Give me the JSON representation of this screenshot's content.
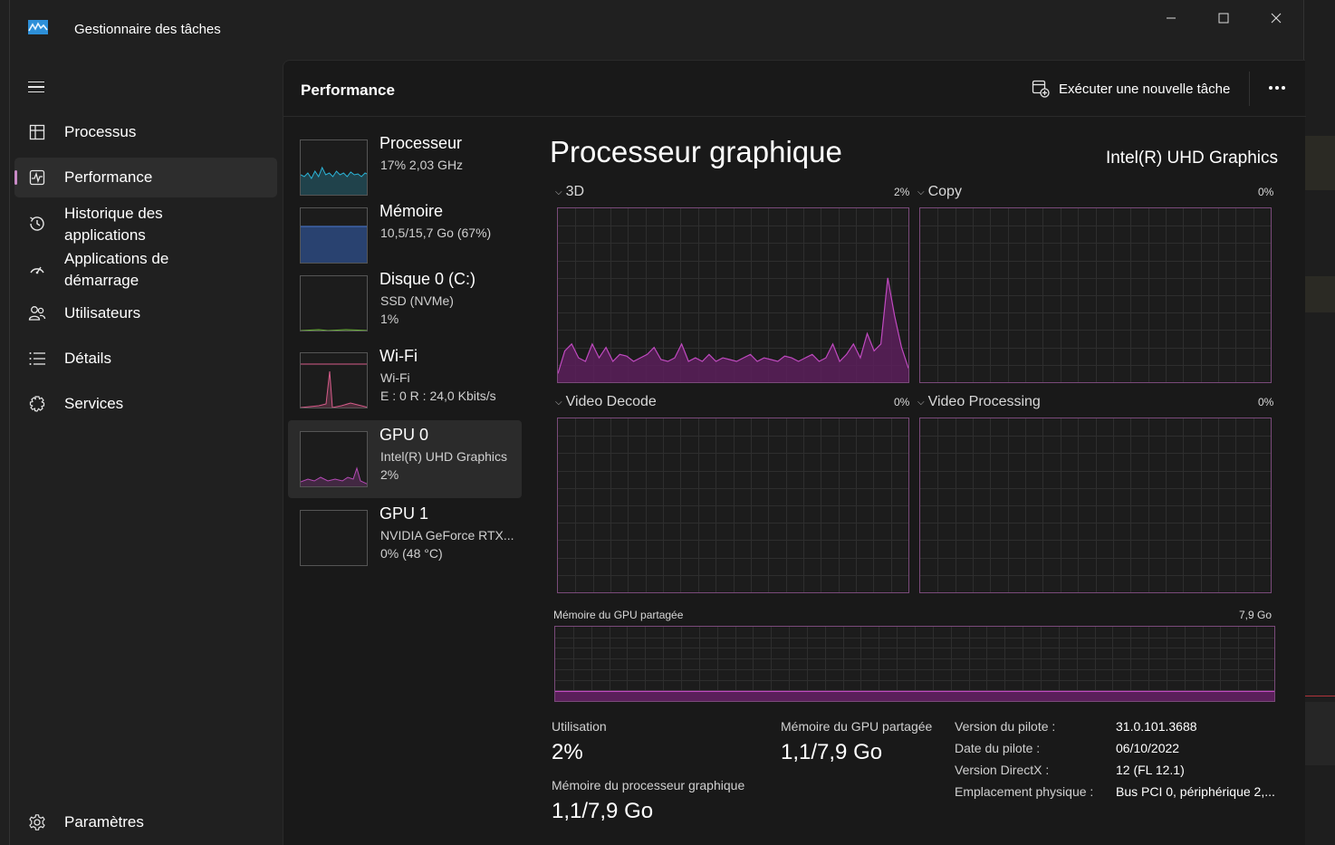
{
  "window": {
    "title": "Gestionnaire des tâches",
    "controls": {
      "minimize": "─",
      "maximize": "☐",
      "close": "✕"
    }
  },
  "sidebar": {
    "items": [
      {
        "id": "processus",
        "label": "Processus",
        "icon": "processes-icon",
        "active": false
      },
      {
        "id": "performance",
        "label": "Performance",
        "icon": "performance-icon",
        "active": true
      },
      {
        "id": "historique",
        "label": "Historique des applications",
        "icon": "history-icon",
        "active": false
      },
      {
        "id": "demarrage",
        "label": "Applications de démarrage",
        "icon": "startup-icon",
        "active": false
      },
      {
        "id": "utilisateurs",
        "label": "Utilisateurs",
        "icon": "users-icon",
        "active": false
      },
      {
        "id": "details",
        "label": "Détails",
        "icon": "details-icon",
        "active": false
      },
      {
        "id": "services",
        "label": "Services",
        "icon": "services-icon",
        "active": false
      }
    ],
    "settings_label": "Paramètres"
  },
  "header": {
    "title": "Performance",
    "run_task_label": "Exécuter une nouvelle tâche"
  },
  "devices": [
    {
      "name": "Processeur",
      "line1": "17% 2,03 GHz",
      "line2": "",
      "color": "#2bb3d6",
      "active": false
    },
    {
      "name": "Mémoire",
      "line1": "10,5/15,7 Go (67%)",
      "line2": "",
      "color": "#4b7bd3",
      "active": false
    },
    {
      "name": "Disque 0 (C:)",
      "line1": "SSD (NVMe)",
      "line2": "1%",
      "color": "#6fb63c",
      "active": false
    },
    {
      "name": "Wi-Fi",
      "line1": "Wi-Fi",
      "line2": "E : 0 R : 24,0 Kbits/s",
      "color": "#d65c8a",
      "active": false
    },
    {
      "name": "GPU 0",
      "line1": "Intel(R) UHD Graphics",
      "line2": "2%",
      "color": "#b54ab5",
      "active": true
    },
    {
      "name": "GPU 1",
      "line1": "NVIDIA GeForce RTX...",
      "line2": "0% (48 °C)",
      "color": "#b54ab5",
      "active": false
    }
  ],
  "detail": {
    "title": "Processeur graphique",
    "model": "Intel(R) UHD Graphics",
    "engines": [
      {
        "name": "3D",
        "pct": "2%",
        "values": [
          5,
          18,
          22,
          14,
          12,
          22,
          14,
          20,
          12,
          16,
          15,
          12,
          14,
          16,
          20,
          13,
          12,
          14,
          22,
          12,
          14,
          12,
          16,
          12,
          14,
          13,
          12,
          14,
          16,
          12,
          14,
          13,
          12,
          15,
          14,
          12,
          14,
          16,
          12,
          14,
          22,
          12,
          16,
          22,
          14,
          28,
          18,
          22,
          60,
          38,
          20,
          8
        ]
      },
      {
        "name": "Copy",
        "pct": "0%",
        "values": []
      },
      {
        "name": "Video Decode",
        "pct": "0%",
        "values": []
      },
      {
        "name": "Video Processing",
        "pct": "0%",
        "values": []
      }
    ],
    "shared_memory_graph": {
      "label": "Mémoire du GPU partagée",
      "max": "7,9 Go",
      "fill_fraction": 0.13
    },
    "stats": {
      "utilisation_label": "Utilisation",
      "utilisation_value": "2%",
      "shared_mem_label": "Mémoire du GPU partagée",
      "shared_mem_value": "1,1/7,9 Go",
      "gpu_mem_label": "Mémoire du processeur graphique",
      "gpu_mem_value": "1,1/7,9 Go"
    },
    "info": [
      {
        "key": "Version du pilote :",
        "value": "31.0.101.3688"
      },
      {
        "key": "Date du pilote :",
        "value": "06/10/2022"
      },
      {
        "key": "Version DirectX :",
        "value": "12 (FL 12.1)"
      },
      {
        "key": "Emplacement physique :",
        "value": "Bus PCI 0, périphérique 2,..."
      }
    ]
  }
}
